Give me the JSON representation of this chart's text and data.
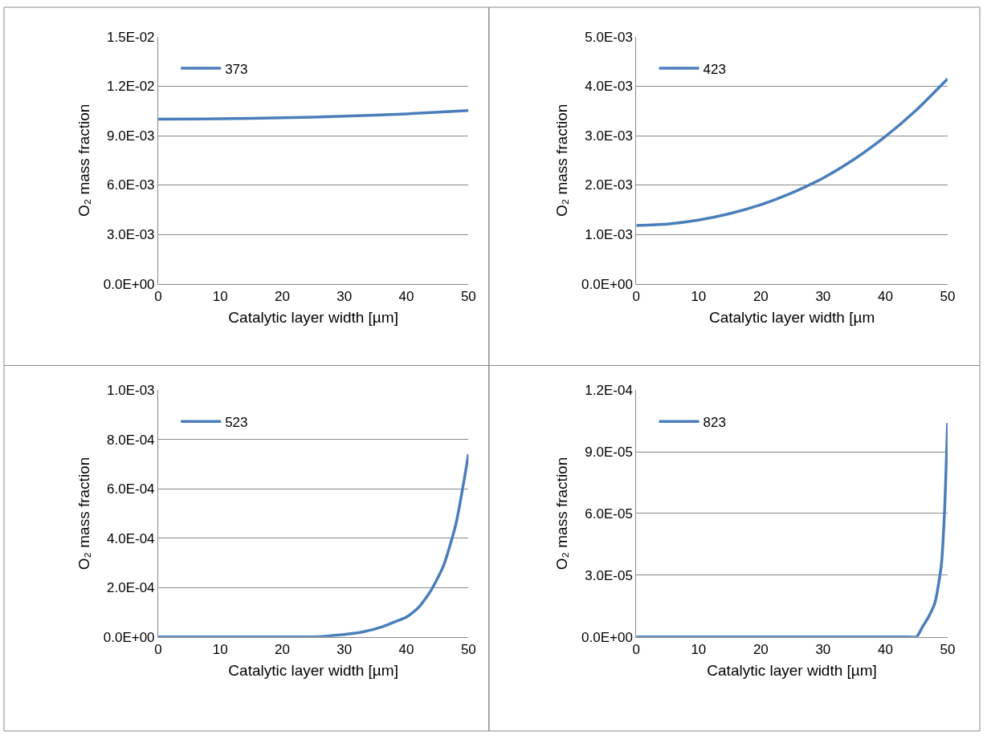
{
  "chart_data": [
    {
      "type": "line",
      "x": [
        0,
        10,
        20,
        30,
        40,
        50
      ],
      "series": [
        {
          "name": "373",
          "color": "#4a7ebb",
          "values": [
            0.01,
            0.01002,
            0.01008,
            0.01018,
            0.01032,
            0.01052
          ]
        }
      ],
      "xlim": [
        0,
        50
      ],
      "xticks": [
        0,
        10,
        20,
        30,
        40,
        50
      ],
      "ylim": [
        0,
        0.015
      ],
      "yticks": [
        {
          "value": 0,
          "label": "0.0E+00"
        },
        {
          "value": 0.003,
          "label": "3.0E-03"
        },
        {
          "value": 0.006,
          "label": "6.0E-03"
        },
        {
          "value": 0.009,
          "label": "9.0E-03"
        },
        {
          "value": 0.012,
          "label": "1.2E-02"
        },
        {
          "value": 0.015,
          "label": "1.5E-02"
        }
      ],
      "xlabel": "Catalytic layer width [µm]",
      "ylabel": "O₂ mass fraction",
      "grid": "y",
      "legend": "top left"
    },
    {
      "type": "line",
      "x": [
        0,
        5,
        10,
        15,
        20,
        25,
        30,
        35,
        40,
        45,
        50
      ],
      "series": [
        {
          "name": "423",
          "color": "#4a7ebb",
          "values": [
            0.00118,
            0.00121,
            0.00129,
            0.00142,
            0.0016,
            0.00184,
            0.00214,
            0.00252,
            0.00298,
            0.00352,
            0.00415
          ]
        }
      ],
      "xlim": [
        0,
        50
      ],
      "xticks": [
        0,
        10,
        20,
        30,
        40,
        50
      ],
      "ylim": [
        0,
        0.005
      ],
      "yticks": [
        {
          "value": 0,
          "label": "0.0E+00"
        },
        {
          "value": 0.001,
          "label": "1.0E-03"
        },
        {
          "value": 0.002,
          "label": "2.0E-03"
        },
        {
          "value": 0.003,
          "label": "3.0E-03"
        },
        {
          "value": 0.004,
          "label": "4.0E-03"
        },
        {
          "value": 0.005,
          "label": "5.0E-03"
        }
      ],
      "xlabel": "Catalytic layer width [µm",
      "ylabel": "O₂ mass fraction",
      "grid": "y",
      "legend": "top left"
    },
    {
      "type": "line",
      "x": [
        0,
        20,
        25,
        30,
        33,
        36,
        38,
        40,
        42,
        44,
        46,
        48,
        50
      ],
      "series": [
        {
          "name": "523",
          "color": "#4a7ebb",
          "values": [
            0,
            0,
            0,
            1e-05,
            2e-05,
            4e-05,
            6e-05,
            8e-05,
            0.00012,
            0.00019,
            0.00029,
            0.00046,
            0.00074
          ]
        }
      ],
      "xlim": [
        0,
        50
      ],
      "xticks": [
        0,
        10,
        20,
        30,
        40,
        50
      ],
      "ylim": [
        0,
        0.001
      ],
      "yticks": [
        {
          "value": 0,
          "label": "0.0E+00"
        },
        {
          "value": 0.0002,
          "label": "2.0E-04"
        },
        {
          "value": 0.0004,
          "label": "4.0E-04"
        },
        {
          "value": 0.0006,
          "label": "6.0E-04"
        },
        {
          "value": 0.0008,
          "label": "8.0E-04"
        },
        {
          "value": 0.001,
          "label": "1.0E-03"
        }
      ],
      "xlabel": "Catalytic layer width [µm]",
      "ylabel": "O₂ mass fraction",
      "grid": "y",
      "legend": "top left"
    },
    {
      "type": "line",
      "x": [
        0,
        40,
        42,
        44,
        45,
        46,
        47,
        48,
        49,
        49.5,
        50
      ],
      "series": [
        {
          "name": "823",
          "color": "#4a7ebb",
          "values": [
            0,
            0,
            0,
            0,
            0,
            5e-06,
            1e-05,
            1.7e-05,
            3.5e-05,
            6e-05,
            0.000104
          ]
        }
      ],
      "xlim": [
        0,
        50
      ],
      "xticks": [
        0,
        10,
        20,
        30,
        40,
        50
      ],
      "ylim": [
        0,
        0.00012
      ],
      "yticks": [
        {
          "value": 0,
          "label": "0.0E+00"
        },
        {
          "value": 3e-05,
          "label": "3.0E-05"
        },
        {
          "value": 6e-05,
          "label": "6.0E-05"
        },
        {
          "value": 9e-05,
          "label": "9.0E-05"
        },
        {
          "value": 0.00012,
          "label": "1.2E-04"
        }
      ],
      "xlabel": "Catalytic layer width [µm]",
      "ylabel": "O₂ mass fraction",
      "grid": "y",
      "legend": "top left"
    }
  ]
}
